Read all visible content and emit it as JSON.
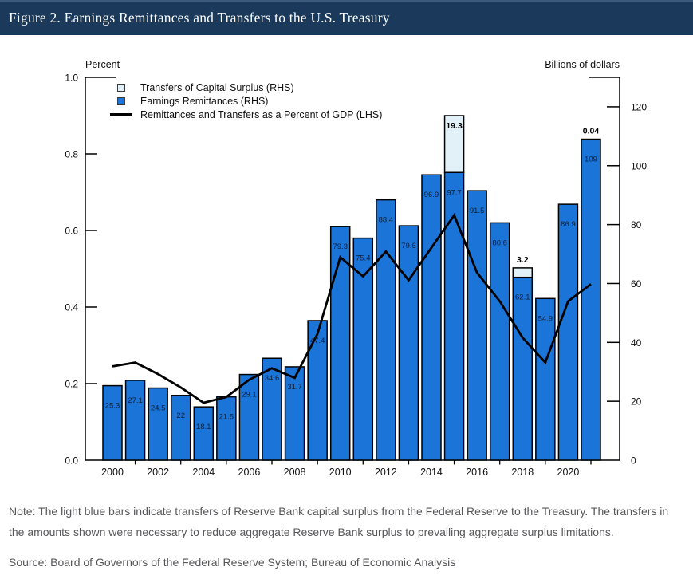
{
  "title_bar": {
    "title": "Figure 2. Earnings Remittances and Transfers to the U.S. Treasury"
  },
  "chart": {
    "left_axis_caption": "Percent",
    "right_axis_caption": "Billions of dollars",
    "legend": [
      {
        "label": "Transfers of Capital Surplus (RHS)",
        "marker": "light-square"
      },
      {
        "label": "Earnings Remittances (RHS)",
        "marker": "blue-square"
      },
      {
        "label": "Remittances and Transfers as a Percent of GDP (LHS)",
        "marker": "black-line"
      }
    ]
  },
  "chart_data": {
    "type": "bar+line",
    "categories": [
      2000,
      2001,
      2002,
      2003,
      2004,
      2005,
      2006,
      2007,
      2008,
      2009,
      2010,
      2011,
      2012,
      2013,
      2014,
      2015,
      2016,
      2017,
      2018,
      2019,
      2020,
      2021
    ],
    "series": [
      {
        "name": "Earnings Remittances (RHS)",
        "type": "bar",
        "axis": "right",
        "values": [
          25.3,
          27.1,
          24.5,
          22,
          18.1,
          21.5,
          29.1,
          34.6,
          31.7,
          47.4,
          79.3,
          75.4,
          88.4,
          79.6,
          96.9,
          97.7,
          91.5,
          80.6,
          62.1,
          54.9,
          86.9,
          109
        ],
        "labels": [
          "25.3",
          "27.1",
          "24.5",
          "22",
          "18.1",
          "21.5",
          "29.1",
          "34.6",
          "31.7",
          "47.4",
          "79.3",
          "75.4",
          "88.4",
          "79.6",
          "96.9",
          "97.7",
          "91.5",
          "80.6",
          "62.1",
          "54.9",
          "86.9",
          "109"
        ]
      },
      {
        "name": "Transfers of Capital Surplus (RHS)",
        "type": "bar-stacked",
        "axis": "right",
        "values": [
          0,
          0,
          0,
          0,
          0,
          0,
          0,
          0,
          0,
          0,
          0,
          0,
          0,
          0,
          0,
          19.3,
          0,
          0,
          3.2,
          0,
          0,
          0.04
        ],
        "labels": {
          "15": "19.3",
          "18": "3.2",
          "21": "0.04"
        },
        "label_placement": {
          "15": "inside",
          "18": "above",
          "21": "above"
        }
      },
      {
        "name": "Remittances and Transfers as a Percent of GDP (LHS)",
        "type": "line",
        "axis": "left",
        "values": [
          0.245,
          0.255,
          0.225,
          0.19,
          0.15,
          0.165,
          0.21,
          0.24,
          0.215,
          0.33,
          0.53,
          0.48,
          0.545,
          0.47,
          0.555,
          0.64,
          0.49,
          0.415,
          0.32,
          0.255,
          0.415,
          0.46
        ]
      }
    ],
    "left_axis": {
      "caption": "Percent",
      "min": 0,
      "max": 1.0,
      "tick_labels": [
        "1.0",
        "0.8",
        "0.6",
        "0.4",
        "0.2",
        "0.0"
      ]
    },
    "right_axis": {
      "caption": "Billions of dollars",
      "min": 0,
      "max": 130,
      "tick_labels": [
        "120",
        "100",
        "80",
        "60",
        "40",
        "20",
        "0"
      ]
    },
    "x_tick_labels": [
      "2000",
      "2002",
      "2004",
      "2006",
      "2008",
      "2010",
      "2012",
      "2014",
      "2016",
      "2018",
      "2020"
    ],
    "grid": false,
    "legend_position": "top-left-inside"
  },
  "colors": {
    "bar_blue": "#1b74d8",
    "transfer_light": "#e2f1f8",
    "bar_border": "#000000",
    "gdp_line": "#000000",
    "titlebar": "#1b3a5b",
    "bar_label_text": "#0e2038",
    "note_text": "#57575a"
  },
  "note": "Note: The light blue bars indicate transfers of Reserve Bank capital surplus from the Federal Reserve to the Treasury. The transfers in the amounts shown were necessary to reduce aggregate Reserve Bank surplus to prevailing aggregate surplus limitations.",
  "source": "Source: Board of Governors of the Federal Reserve System; Bureau of Economic Analysis"
}
